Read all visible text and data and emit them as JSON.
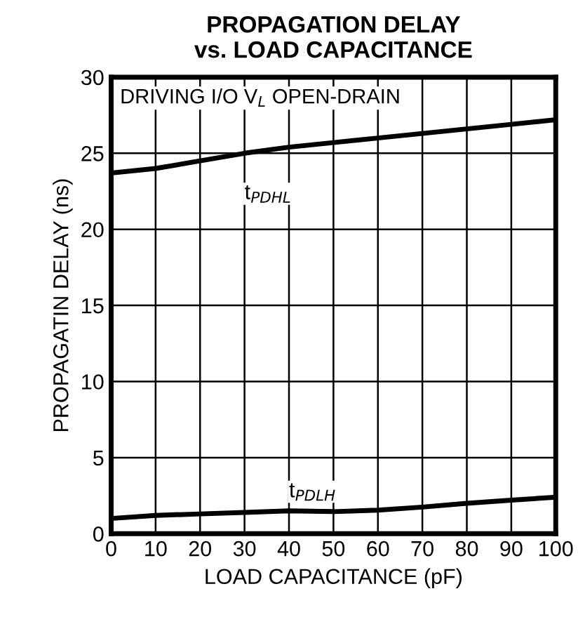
{
  "chart_data": {
    "type": "line",
    "title": "PROPAGATION DELAY\nvs. LOAD CAPACITANCE",
    "xlabel": "LOAD CAPACITANCE (pF)",
    "ylabel": "PROPAGATIN DELAY (ns)",
    "annotations": [
      "DRIVING I/O V$_{L}$ OPEN-DRAIN"
    ],
    "x": [
      0,
      10,
      20,
      30,
      40,
      50,
      60,
      70,
      80,
      90,
      100
    ],
    "series": [
      {
        "name": "t$_{PDHL}$",
        "color": "#000000",
        "values": [
          23.7,
          24.0,
          24.5,
          25.0,
          25.4,
          25.7,
          26.0,
          26.3,
          26.6,
          26.9,
          27.2
        ]
      },
      {
        "name": "t$_{PDLH}$",
        "color": "#000000",
        "values": [
          1.0,
          1.2,
          1.3,
          1.4,
          1.5,
          1.45,
          1.55,
          1.75,
          2.0,
          2.2,
          2.4
        ]
      }
    ],
    "xlim": [
      0,
      100
    ],
    "xticks": [
      0,
      10,
      20,
      30,
      40,
      50,
      60,
      70,
      80,
      90,
      100
    ],
    "ylim": [
      0,
      30
    ],
    "yticks": [
      0,
      5,
      10,
      15,
      20,
      25,
      30
    ],
    "grid": true,
    "marker": "none",
    "line_style": "solid"
  }
}
